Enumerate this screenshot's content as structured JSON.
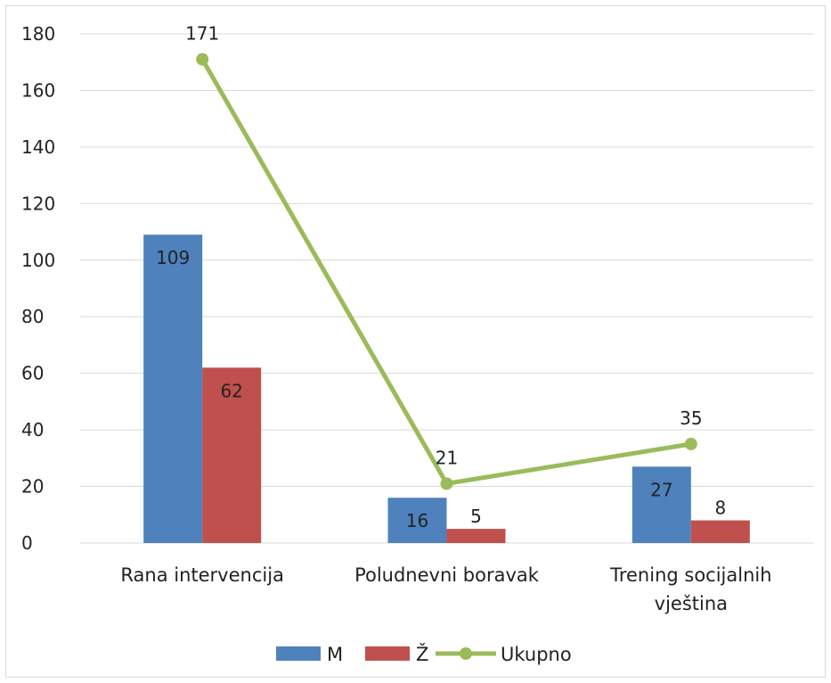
{
  "chart_data": {
    "type": "bar",
    "categories": [
      "Rana intervencija",
      "Poludnevni boravak",
      "Trening socijalnih vještina"
    ],
    "category_lines": [
      [
        "Rana intervencija"
      ],
      [
        "Poludnevni boravak"
      ],
      [
        "Trening socijalnih",
        "vještina"
      ]
    ],
    "series": [
      {
        "name": "M",
        "kind": "bar",
        "values": [
          109,
          16,
          27
        ],
        "color": "#4f81bd"
      },
      {
        "name": "Ž",
        "kind": "bar",
        "values": [
          62,
          5,
          8
        ],
        "color": "#c0504d"
      },
      {
        "name": "Ukupno",
        "kind": "line",
        "values": [
          171,
          21,
          35
        ],
        "color": "#9bbb59"
      }
    ],
    "ylim": [
      0,
      180
    ],
    "yticks": [
      0,
      20,
      40,
      60,
      80,
      100,
      120,
      140,
      160,
      180
    ],
    "grid": true,
    "legend": "bottom",
    "title": "",
    "xlabel": "",
    "ylabel": ""
  }
}
